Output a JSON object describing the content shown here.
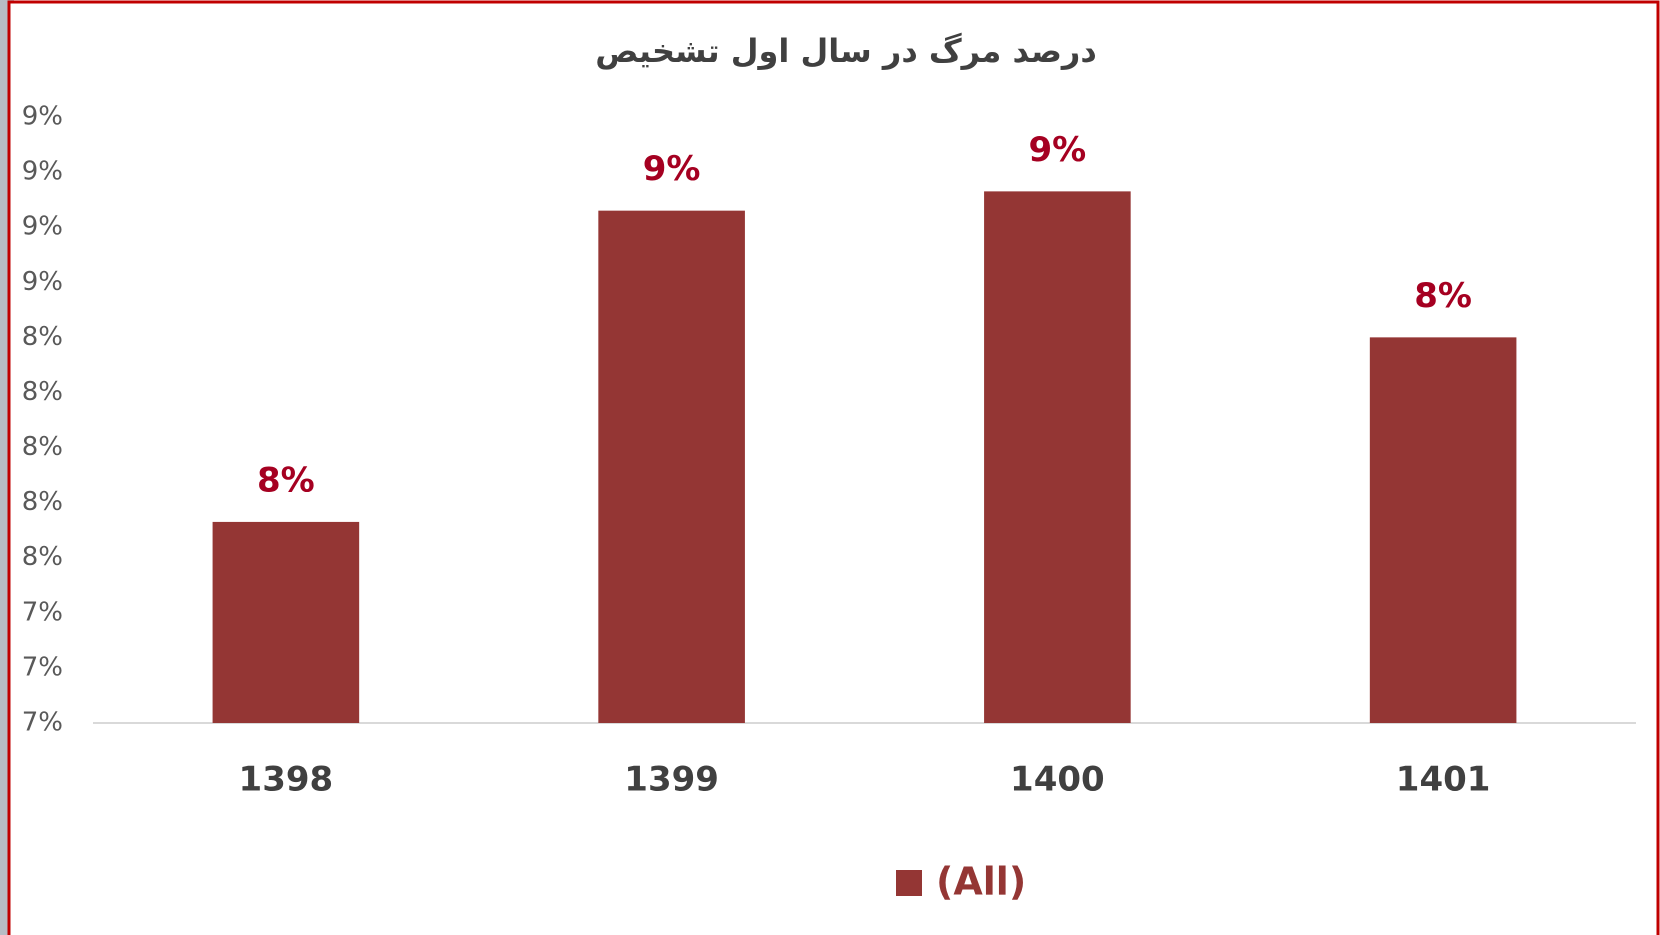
{
  "chart_data": {
    "type": "bar",
    "title": "درصد مرگ در سال اول تشخیص",
    "categories": [
      "1398",
      "1399",
      "1400",
      "1401"
    ],
    "series": [
      {
        "name": "(All)",
        "color": "#943634",
        "values": [
          7.73,
          8.86,
          8.93,
          8.4
        ],
        "value_labels": [
          "8%",
          "9%",
          "9%",
          "8%"
        ]
      }
    ],
    "ylim": [
      7.0,
      9.2
    ],
    "yticks": [
      {
        "value": 7.0,
        "label": "7%"
      },
      {
        "value": 7.2,
        "label": "7%"
      },
      {
        "value": 7.4,
        "label": "7%"
      },
      {
        "value": 7.6,
        "label": "8%"
      },
      {
        "value": 7.8,
        "label": "8%"
      },
      {
        "value": 8.0,
        "label": "8%"
      },
      {
        "value": 8.2,
        "label": "8%"
      },
      {
        "value": 8.4,
        "label": "8%"
      },
      {
        "value": 8.6,
        "label": "9%"
      },
      {
        "value": 8.8,
        "label": "9%"
      },
      {
        "value": 9.0,
        "label": "9%"
      },
      {
        "value": 9.2,
        "label": "9%"
      }
    ],
    "grid": false,
    "legend": "bottom"
  }
}
